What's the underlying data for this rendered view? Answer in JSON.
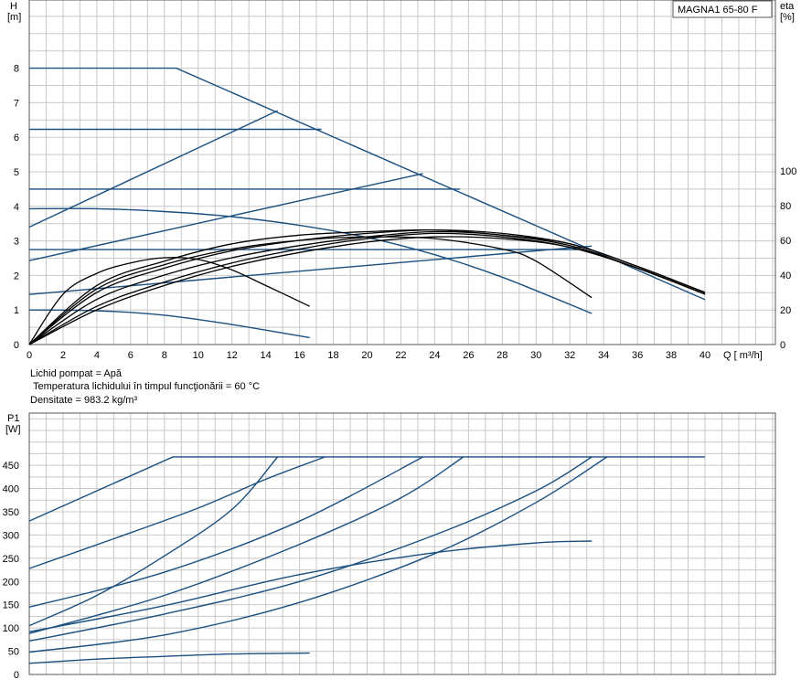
{
  "info": {
    "liquid": "Lichid pompat = Apă",
    "temperature": "Temperatura lichidului în timpul funcţionării = 60  °C",
    "density": "Densitate = 983.2  kg/m³"
  },
  "chart_data": [
    {
      "type": "line",
      "title": "MAGNA1 65-80 F",
      "xlabel": "Q [ m³/h]",
      "ylabel": "H",
      "ylabel_unit": "[m]",
      "y2label": "eta",
      "y2label_unit": "[%]",
      "xlim": [
        0,
        40
      ],
      "ylim": [
        0,
        9.8
      ],
      "y2lim": [
        0,
        100
      ],
      "grid": true,
      "x_ticks": [
        0,
        2,
        4,
        6,
        8,
        10,
        12,
        14,
        16,
        18,
        20,
        22,
        24,
        26,
        28,
        30,
        32,
        34,
        36,
        38,
        40
      ],
      "y_ticks": [
        0,
        1,
        2,
        3,
        4,
        5,
        6,
        7,
        8
      ],
      "y2_ticks": [
        0,
        20,
        40,
        60,
        80,
        100
      ],
      "head_curves": [
        {
          "x": [
            0,
            8.7,
            40
          ],
          "y": [
            8.0,
            8.0,
            1.3
          ]
        },
        {
          "x": [
            0,
            17.3
          ],
          "y": [
            6.23,
            6.23
          ]
        },
        {
          "x": [
            0,
            25.5
          ],
          "y": [
            4.5,
            4.5
          ]
        },
        {
          "x": [
            0,
            32.5
          ],
          "y": [
            2.75,
            2.75
          ]
        },
        {
          "x": [
            0,
            4,
            8,
            12,
            16,
            20,
            24,
            28,
            33.3
          ],
          "y": [
            3.93,
            3.93,
            3.85,
            3.7,
            3.45,
            3.1,
            2.6,
            1.95,
            0.9
          ]
        },
        {
          "x": [
            0,
            4,
            8,
            12,
            16.6
          ],
          "y": [
            1.0,
            0.98,
            0.85,
            0.58,
            0.2
          ]
        },
        {
          "x": [
            0,
            14.7
          ],
          "y": [
            3.4,
            6.77
          ]
        },
        {
          "x": [
            0,
            23.3
          ],
          "y": [
            2.43,
            4.95
          ]
        },
        {
          "x": [
            0,
            33.3
          ],
          "y": [
            1.45,
            2.85
          ]
        }
      ],
      "efficiency_curves": [
        {
          "x": [
            0,
            2,
            4,
            6,
            8,
            10,
            12,
            14,
            16.6
          ],
          "y": [
            0,
            29,
            41,
            47,
            50,
            49,
            43,
            34,
            22
          ]
        },
        {
          "x": [
            0,
            4,
            8,
            12,
            16,
            20,
            24,
            28,
            30,
            33.3
          ],
          "y": [
            0,
            32,
            46,
            55,
            60,
            62,
            61,
            55,
            48,
            27
          ]
        },
        {
          "x": [
            0,
            4,
            8,
            12,
            16,
            20,
            24,
            28,
            32,
            36,
            40
          ],
          "y": [
            0,
            34,
            48,
            58,
            63,
            65,
            66,
            63,
            58,
            45,
            30
          ]
        },
        {
          "x": [
            0,
            4,
            8,
            12,
            16,
            20,
            24,
            28,
            32,
            36,
            40
          ],
          "y": [
            0,
            30,
            44,
            54,
            60,
            64,
            66,
            64,
            58,
            45,
            30
          ]
        },
        {
          "x": [
            0,
            4,
            8,
            12,
            16,
            20,
            24,
            28,
            32,
            36,
            40
          ],
          "y": [
            0,
            26,
            40,
            50,
            57,
            62,
            65,
            63,
            57,
            44,
            29
          ]
        },
        {
          "x": [
            0,
            4,
            8,
            12,
            16,
            20,
            24,
            28,
            32,
            36,
            40
          ],
          "y": [
            0,
            22,
            36,
            47,
            55,
            61,
            64,
            62,
            56,
            44,
            29
          ]
        },
        {
          "x": [
            0,
            4,
            8,
            12,
            16,
            20,
            24,
            28,
            32,
            36,
            40
          ],
          "y": [
            0,
            20,
            34,
            45,
            53,
            59,
            62,
            61,
            56,
            44,
            29
          ]
        }
      ]
    },
    {
      "type": "line",
      "ylabel": "P1",
      "ylabel_unit": "[W]",
      "xlim": [
        0,
        40
      ],
      "ylim": [
        0,
        520
      ],
      "grid": true,
      "y_ticks": [
        0,
        50,
        100,
        150,
        200,
        250,
        300,
        350,
        400,
        450
      ],
      "power_curves": [
        {
          "x": [
            0,
            8.5,
            40
          ],
          "y": [
            330,
            468,
            468
          ]
        },
        {
          "x": [
            0,
            5,
            10,
            14,
            17.5
          ],
          "y": [
            228,
            292,
            358,
            420,
            468
          ]
        },
        {
          "x": [
            0,
            4,
            8,
            12,
            14.7
          ],
          "y": [
            105,
            170,
            255,
            355,
            468
          ]
        },
        {
          "x": [
            0,
            8,
            16,
            23.3
          ],
          "y": [
            145,
            220,
            330,
            468
          ]
        },
        {
          "x": [
            0,
            8,
            16,
            22,
            25.7
          ],
          "y": [
            88,
            170,
            280,
            380,
            468
          ]
        },
        {
          "x": [
            0,
            8,
            16,
            24,
            30,
            33.3
          ],
          "y": [
            72,
            130,
            200,
            300,
            395,
            468
          ]
        },
        {
          "x": [
            0,
            8,
            16,
            24,
            30,
            34.2
          ],
          "y": [
            48,
            85,
            155,
            260,
            370,
            468
          ]
        },
        {
          "x": [
            0,
            8,
            16,
            24,
            30,
            33.3
          ],
          "y": [
            92,
            148,
            215,
            262,
            283,
            287
          ]
        },
        {
          "x": [
            0,
            4,
            8,
            12,
            16.6
          ],
          "y": [
            24,
            33,
            39,
            44,
            46
          ]
        }
      ]
    }
  ]
}
